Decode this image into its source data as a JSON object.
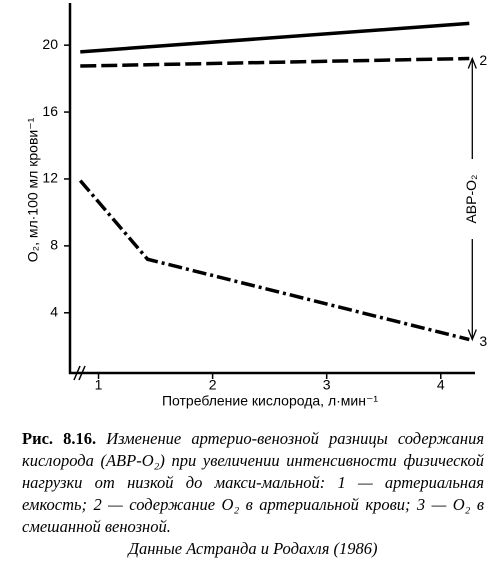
{
  "chart_data": {
    "type": "line",
    "y_label": "O₂, мл·100 мл крови⁻¹",
    "x_label": "Потребление кислорода, л·мин⁻¹",
    "annotation": "АВР-O₂",
    "xlim": [
      0.75,
      4.3
    ],
    "xticks": [
      1,
      2,
      3,
      4
    ],
    "ylim": [
      0.4,
      22.4
    ],
    "yticks": [
      4,
      8,
      12,
      16,
      20
    ],
    "series": [
      {
        "color": "#000000",
        "style": "solid",
        "x": [
          0.84,
          4.25
        ],
        "values": [
          19.6,
          21.3
        ]
      },
      {
        "label": "2",
        "color": "#000000",
        "style": "dashed",
        "x": [
          0.84,
          4.25
        ],
        "values": [
          18.75,
          19.2
        ]
      },
      {
        "label": "3",
        "color": "#000000",
        "style": "dashdot",
        "x": [
          0.84,
          1.43,
          4.25
        ],
        "values": [
          11.9,
          7.2,
          2.4
        ]
      }
    ],
    "caption_number": "Рис. 8.16.",
    "caption": "Изменение артерио-венозной разницы содержания кислорода (АВР-O₂) при увеличении интенсивности физической нагрузки от низкой до макси-мальной: 1 — артериальная емкость; 2 — содержание O₂ в артериальной крови; 3 — O₂ в смешанной венозной.",
    "source": "Данные Астранда и Родахля (1986)"
  }
}
